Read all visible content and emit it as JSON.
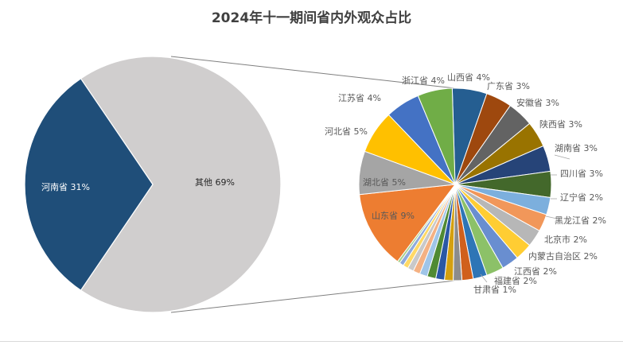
{
  "chart_data": {
    "type": "pie",
    "subtype": "pie-of-pie",
    "title": "2024年十一期间省内外观众占比",
    "main_pie": {
      "slices": [
        {
          "label": "河南省",
          "value": 31,
          "display": "河南省 31%",
          "color": "#1f4e79"
        },
        {
          "label": "其他",
          "value": 69,
          "display": "其他 69%",
          "color": "#d0cece"
        }
      ]
    },
    "secondary_pie": {
      "of": "其他",
      "slices": [
        {
          "label": "山西省",
          "value": 4,
          "display": "山西省 4%",
          "color": "#255e91"
        },
        {
          "label": "广东省",
          "value": 3,
          "display": "广东省 3%",
          "color": "#9e480e"
        },
        {
          "label": "安徽省",
          "value": 3,
          "display": "安徽省 3%",
          "color": "#636363"
        },
        {
          "label": "陕西省",
          "value": 3,
          "display": "陕西省 3%",
          "color": "#997300"
        },
        {
          "label": "湖南省",
          "value": 3,
          "display": "湖南省 3%",
          "color": "#264478"
        },
        {
          "label": "四川省",
          "value": 3,
          "display": "四川省 3%",
          "color": "#43682b"
        },
        {
          "label": "辽宁省",
          "value": 2,
          "display": "辽宁省 2%",
          "color": "#7cafdd"
        },
        {
          "label": "黑龙江省",
          "value": 2,
          "display": "黑龙江省 2%",
          "color": "#f1975a"
        },
        {
          "label": "北京市",
          "value": 2,
          "display": "北京市 2%",
          "color": "#b7b7b7"
        },
        {
          "label": "内蒙古自治区",
          "value": 2,
          "display": "内蒙古自治区 2%",
          "color": "#ffcd33"
        },
        {
          "label": "江西省",
          "value": 2,
          "display": "江西省 2%",
          "color": "#698ed0"
        },
        {
          "label": "江西省-b",
          "value": 2,
          "display": "",
          "color": "#8cc168"
        },
        {
          "label": "福建省",
          "value": 1.6,
          "display": "福建省 2%",
          "color": "#2e75b6"
        },
        {
          "label": "甘肃省",
          "value": 1.3,
          "display": "甘肃省 1%",
          "color": "#d0601c"
        },
        {
          "label": "",
          "value": 1.0,
          "display": "",
          "color": "#8c8c8c"
        },
        {
          "label": "",
          "value": 1.0,
          "display": "",
          "color": "#d4a010"
        },
        {
          "label": "",
          "value": 1.0,
          "display": "",
          "color": "#2a57a5"
        },
        {
          "label": "",
          "value": 1.0,
          "display": "",
          "color": "#4f8a33"
        },
        {
          "label": "",
          "value": 0.9,
          "display": "",
          "color": "#9fc5e8"
        },
        {
          "label": "",
          "value": 0.8,
          "display": "",
          "color": "#f4b183"
        },
        {
          "label": "",
          "value": 0.7,
          "display": "",
          "color": "#c9c9c9"
        },
        {
          "label": "",
          "value": 0.6,
          "display": "",
          "color": "#ffd966"
        },
        {
          "label": "",
          "value": 0.5,
          "display": "",
          "color": "#8faadc"
        },
        {
          "label": "",
          "value": 0.3,
          "display": "",
          "color": "#a9d18e"
        },
        {
          "label": "山东省",
          "value": 9,
          "display": "山东省 9%",
          "color": "#ed7d31"
        },
        {
          "label": "湖北省",
          "value": 5,
          "display": "湖北省 5%",
          "color": "#a5a5a5"
        },
        {
          "label": "河北省",
          "value": 5,
          "display": "河北省 5%",
          "color": "#ffc000"
        },
        {
          "label": "江苏省",
          "value": 4,
          "display": "江苏省 4%",
          "color": "#4472c4"
        },
        {
          "label": "浙江省",
          "value": 4,
          "display": "浙江省 4%",
          "color": "#70ad47"
        }
      ]
    },
    "legend": "none",
    "data_labels": "category name and percentage"
  }
}
